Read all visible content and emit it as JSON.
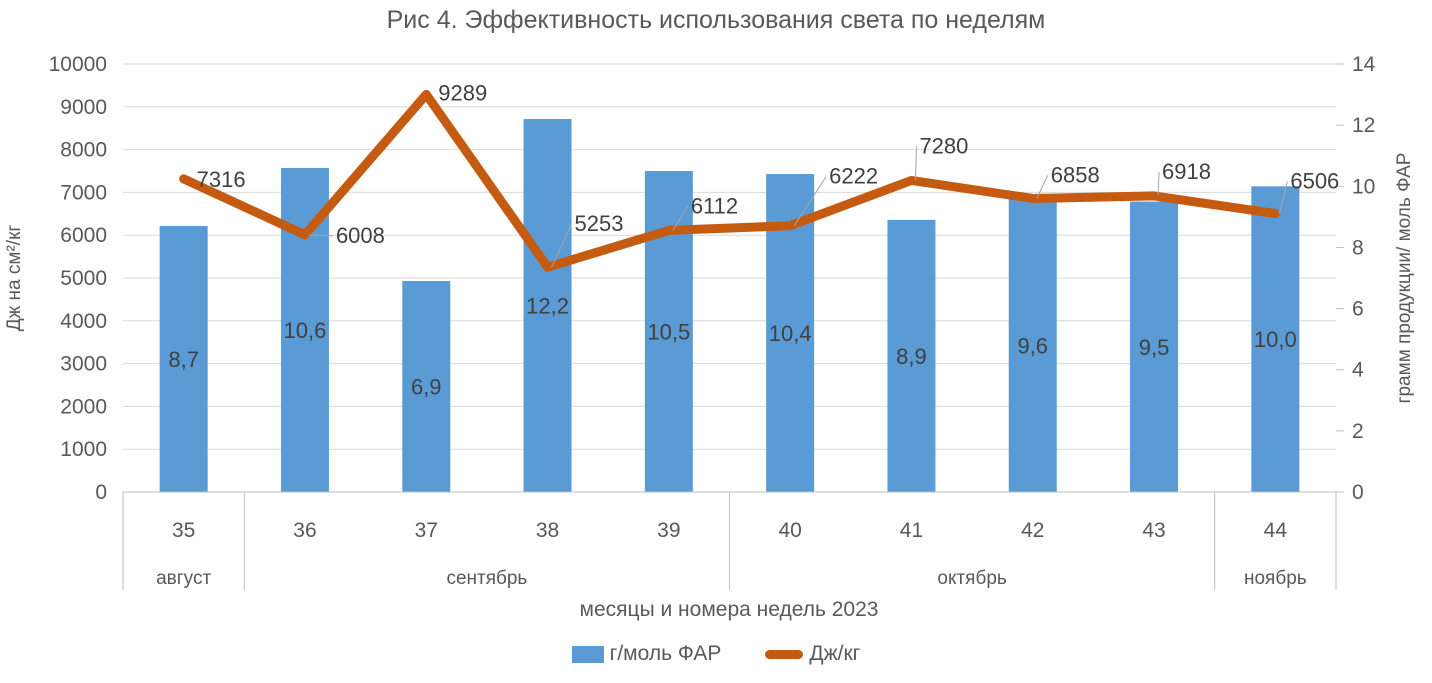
{
  "chart_data": {
    "type": "combo-bar-line",
    "title": "Рис 4. Эффективность использования света по неделям",
    "xlabel": "месяцы и номера недель 2023",
    "categories": [
      "35",
      "36",
      "37",
      "38",
      "39",
      "40",
      "41",
      "42",
      "43",
      "44"
    ],
    "month_groups": [
      {
        "label": "август",
        "span": 1
      },
      {
        "label": "сентябрь",
        "span": 4
      },
      {
        "label": "октябрь",
        "span": 4
      },
      {
        "label": "ноябрь",
        "span": 1
      }
    ],
    "left_axis": {
      "title": "Дж на см²/кг",
      "min": 0,
      "max": 10000,
      "step": 1000
    },
    "right_axis": {
      "title": "грамм продукции/ моль ФАР",
      "min": 0,
      "max": 14,
      "step": 2
    },
    "series": [
      {
        "name": "г/моль ФАР",
        "chart_type": "bar",
        "axis": "right",
        "color": "#5b9bd5",
        "values": [
          8.7,
          10.6,
          6.9,
          12.2,
          10.5,
          10.4,
          8.9,
          9.6,
          9.5,
          10.0
        ],
        "labels": [
          "8,7",
          "10,6",
          "6,9",
          "12,2",
          "10,5",
          "10,4",
          "8,9",
          "9,6",
          "9,5",
          "10,0"
        ]
      },
      {
        "name": "Дж/кг",
        "chart_type": "line",
        "axis": "left",
        "color": "#c55a11",
        "values": [
          7316,
          6008,
          9289,
          5253,
          6112,
          6222,
          7280,
          6858,
          6918,
          6506
        ],
        "labels": [
          "7316",
          "6008",
          "9289",
          "5253",
          "6112",
          "6222",
          "7280",
          "6858",
          "6918",
          "6506"
        ],
        "label_offsets": [
          {
            "dx": 13,
            "dy": 8,
            "leader": false
          },
          {
            "dx": 31,
            "dy": 8,
            "leader": true
          },
          {
            "dx": 12,
            "dy": 6,
            "leader": false
          },
          {
            "dx": 27,
            "dy": -36,
            "leader": true
          },
          {
            "dx": 22,
            "dy": -17,
            "leader": true
          },
          {
            "dx": 39,
            "dy": -42,
            "leader": true
          },
          {
            "dx": 8,
            "dy": -27,
            "leader": true
          },
          {
            "dx": 18,
            "dy": -16,
            "leader": true
          },
          {
            "dx": 8,
            "dy": -17,
            "leader": true
          },
          {
            "dx": 15,
            "dy": -25,
            "leader": true
          }
        ]
      }
    ],
    "legend": [
      {
        "label": "г/моль ФАР",
        "swatch": "bar",
        "color": "#5b9bd5"
      },
      {
        "label": "Дж/кг",
        "swatch": "line",
        "color": "#c55a11"
      }
    ],
    "grid": true,
    "legend_position": "bottom"
  },
  "colors": {
    "background": "#ffffff",
    "bar": "#5b9bd5",
    "line": "#c55a11",
    "grid": "#d9d9d9",
    "axis": "#bfbfbf",
    "tick_text": "#595959",
    "title_text": "#595959",
    "data_label": "#404040",
    "leader": "#a6a6a6"
  }
}
